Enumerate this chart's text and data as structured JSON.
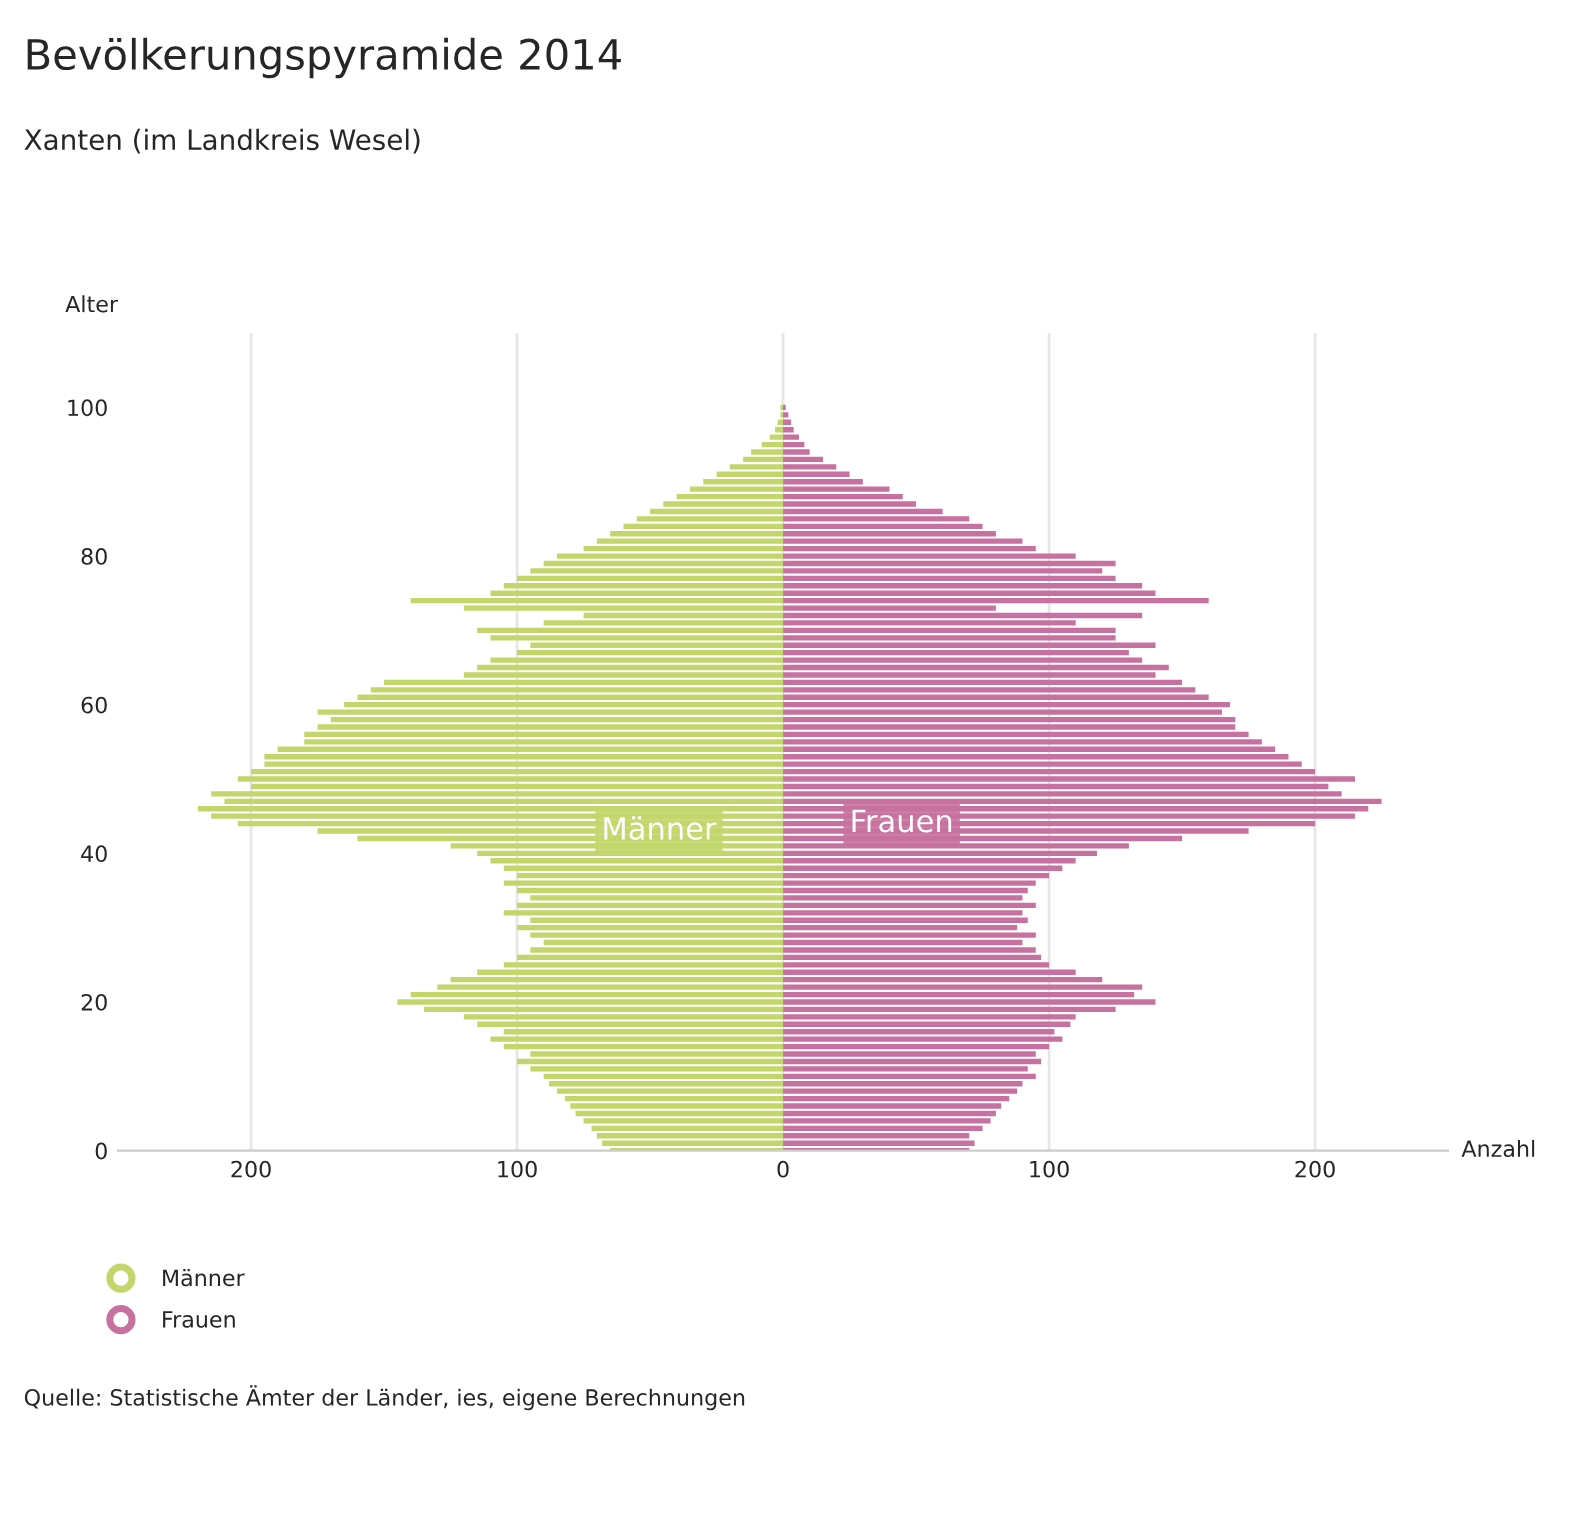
{
  "chart_data": {
    "type": "bar",
    "orientation": "horizontal",
    "stacked": true,
    "title": "Bevölkerungspyramide 2014",
    "subtitle": "Xanten (im Landkreis Wesel)",
    "ylabel": "Alter",
    "xlabel": "Anzahl",
    "x": [
      0,
      1,
      2,
      3,
      4,
      5,
      6,
      7,
      8,
      9,
      10,
      11,
      12,
      13,
      14,
      15,
      16,
      17,
      18,
      19,
      20,
      21,
      22,
      23,
      24,
      25,
      26,
      27,
      28,
      29,
      30,
      31,
      32,
      33,
      34,
      35,
      36,
      37,
      38,
      39,
      40,
      41,
      42,
      43,
      44,
      45,
      46,
      47,
      48,
      49,
      50,
      51,
      52,
      53,
      54,
      55,
      56,
      57,
      58,
      59,
      60,
      61,
      62,
      63,
      64,
      65,
      66,
      67,
      68,
      69,
      70,
      71,
      72,
      73,
      74,
      75,
      76,
      77,
      78,
      79,
      80,
      81,
      82,
      83,
      84,
      85,
      86,
      87,
      88,
      89,
      90,
      91,
      92,
      93,
      94,
      95,
      96,
      97,
      98,
      99,
      100
    ],
    "series": [
      {
        "name": "Männer",
        "color": "#c3d66b",
        "values": [
          -65,
          -68,
          -70,
          -72,
          -75,
          -78,
          -80,
          -82,
          -85,
          -88,
          -90,
          -95,
          -100,
          -95,
          -105,
          -110,
          -105,
          -115,
          -120,
          -135,
          -145,
          -140,
          -130,
          -125,
          -115,
          -105,
          -100,
          -95,
          -90,
          -95,
          -100,
          -95,
          -105,
          -100,
          -95,
          -100,
          -105,
          -100,
          -105,
          -110,
          -115,
          -125,
          -160,
          -175,
          -205,
          -215,
          -220,
          -210,
          -215,
          -200,
          -205,
          -200,
          -195,
          -195,
          -190,
          -180,
          -180,
          -175,
          -170,
          -175,
          -165,
          -160,
          -155,
          -150,
          -120,
          -115,
          -110,
          -100,
          -95,
          -110,
          -115,
          -90,
          -75,
          -120,
          -140,
          -110,
          -105,
          -100,
          -95,
          -90,
          -85,
          -75,
          -70,
          -65,
          -60,
          -55,
          -50,
          -45,
          -40,
          -35,
          -30,
          -25,
          -20,
          -15,
          -12,
          -8,
          -5,
          -3,
          -2,
          -1,
          -1
        ]
      },
      {
        "name": "Frauen",
        "color": "#c6719f",
        "values": [
          70,
          72,
          70,
          75,
          78,
          80,
          82,
          85,
          88,
          90,
          95,
          92,
          97,
          95,
          100,
          105,
          102,
          108,
          110,
          125,
          140,
          132,
          135,
          120,
          110,
          100,
          97,
          95,
          90,
          95,
          88,
          92,
          90,
          95,
          90,
          92,
          95,
          100,
          105,
          110,
          118,
          130,
          150,
          175,
          200,
          215,
          220,
          225,
          210,
          205,
          215,
          200,
          195,
          190,
          185,
          180,
          175,
          170,
          170,
          165,
          168,
          160,
          155,
          150,
          140,
          145,
          135,
          130,
          140,
          125,
          125,
          110,
          135,
          80,
          160,
          140,
          135,
          125,
          120,
          125,
          110,
          95,
          90,
          80,
          75,
          70,
          60,
          50,
          45,
          40,
          30,
          25,
          20,
          15,
          10,
          8,
          6,
          4,
          3,
          2,
          1
        ]
      }
    ],
    "xlim": [
      -250,
      250
    ],
    "xticks": [
      {
        "value": -200,
        "label": "200"
      },
      {
        "value": -100,
        "label": "100"
      },
      0,
      100,
      200
    ],
    "ylim": [
      0,
      110
    ],
    "yticks": [
      0,
      20,
      40,
      60,
      80,
      100
    ],
    "grid": "x",
    "legend": "bottom left",
    "annotations": [
      "Quelle: Statistische Ämter der Länder, ies, eigene Berechnungen"
    ]
  }
}
